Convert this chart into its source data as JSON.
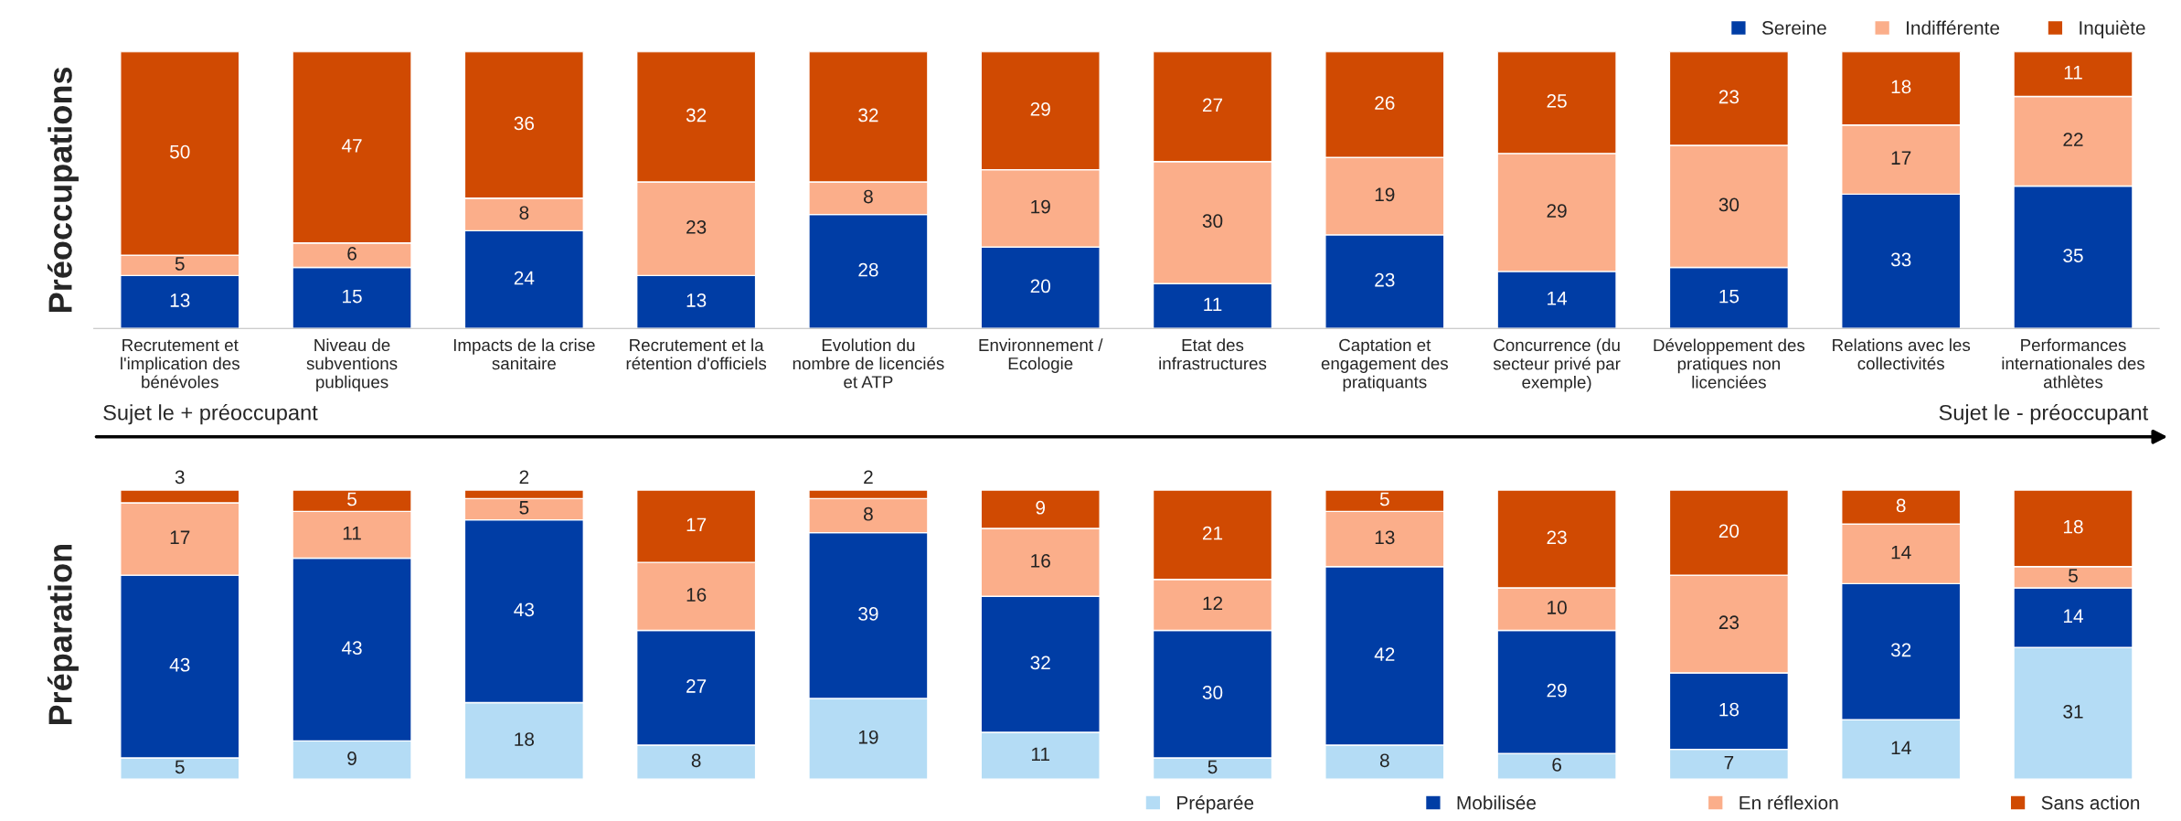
{
  "chart_data": [
    {
      "type": "bar",
      "stacked": true,
      "data_labels": true,
      "ylabel": "Préoccupations",
      "legend": "top right",
      "grid": false,
      "categories": [
        "Recrutement et\nl'implication des\nbénévoles",
        "Niveau de\nsubventions\npubliques",
        "Impacts de la crise\nsanitaire",
        "Recrutement et la\nrétention d'officiels",
        "Evolution du\nnombre de licenciés\net ATP",
        "Environnement /\nEcologie",
        "Etat des\ninfrastructures",
        "Captation et\nengagement des\npratiquants",
        "Concurrence (du\nsecteur privé par\nexemple)",
        "Développement des\npratiques non\nlicenciées",
        "Relations avec les\ncollectivités",
        "Performances\ninternationales des\nathlètes"
      ],
      "series": [
        {
          "name": "Sereine",
          "color": "#003da5",
          "values": [
            13,
            15,
            24,
            13,
            28,
            20,
            11,
            23,
            14,
            15,
            33,
            35
          ]
        },
        {
          "name": "Indifférente",
          "color": "#fbae8a",
          "values": [
            5,
            6,
            8,
            23,
            8,
            19,
            30,
            19,
            29,
            30,
            17,
            22
          ]
        },
        {
          "name": "Inquiète",
          "color": "#d04a02",
          "values": [
            50,
            47,
            36,
            32,
            32,
            29,
            27,
            26,
            25,
            23,
            18,
            11
          ]
        }
      ],
      "annotations": [
        "Sujet le + préoccupant",
        "Sujet le - préoccupant"
      ]
    },
    {
      "type": "bar",
      "stacked": true,
      "data_labels": true,
      "ylabel": "Préparation",
      "legend": "bottom",
      "grid": false,
      "categories": [
        null,
        null,
        null,
        null,
        null,
        null,
        null,
        null,
        null,
        null,
        null,
        null
      ],
      "series": [
        {
          "name": "Préparée",
          "color": "#b4dcf5",
          "values": [
            5,
            9,
            18,
            8,
            19,
            11,
            5,
            8,
            6,
            7,
            14,
            31
          ]
        },
        {
          "name": "Mobilisée",
          "color": "#003da5",
          "values": [
            43,
            43,
            43,
            27,
            39,
            32,
            30,
            42,
            29,
            18,
            32,
            14
          ]
        },
        {
          "name": "En réflexion",
          "color": "#fbae8a",
          "values": [
            17,
            11,
            5,
            16,
            8,
            16,
            12,
            13,
            10,
            23,
            14,
            5
          ]
        },
        {
          "name": "Sans action",
          "color": "#d04a02",
          "values": [
            3,
            5,
            2,
            17,
            2,
            9,
            21,
            5,
            23,
            20,
            8,
            18
          ]
        }
      ]
    }
  ]
}
